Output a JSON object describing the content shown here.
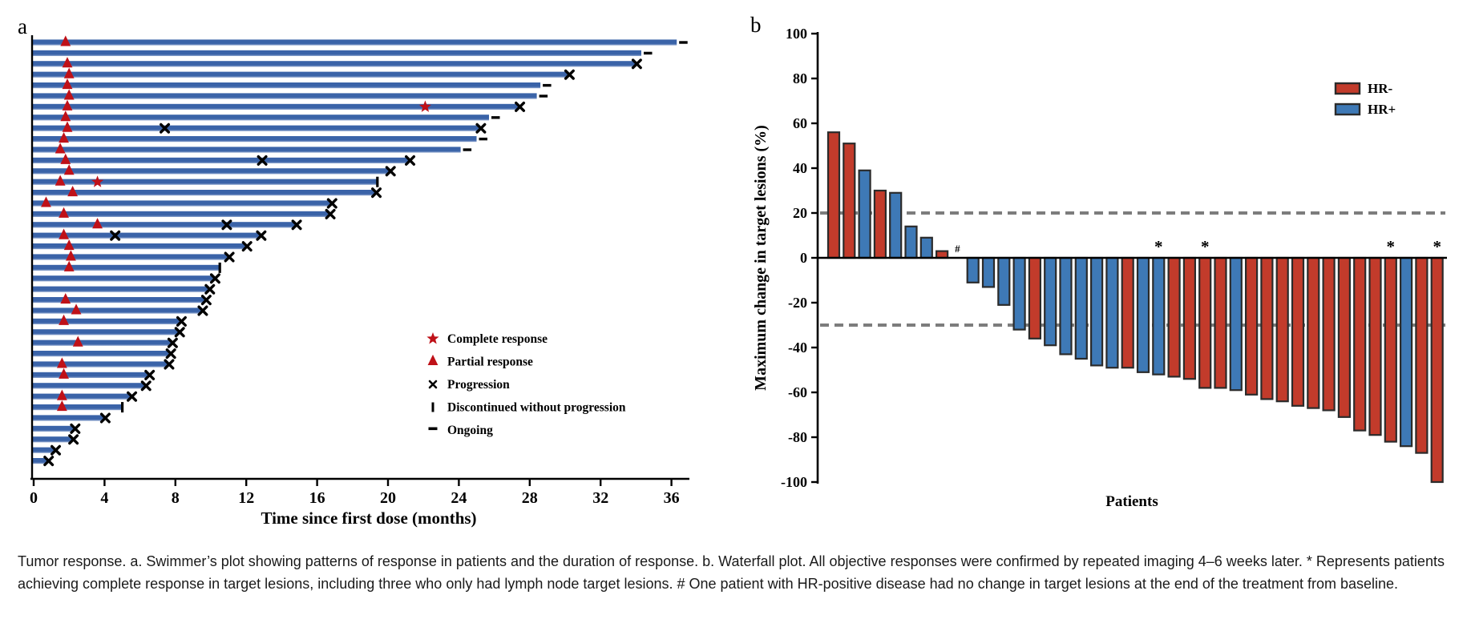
{
  "figure": {
    "panel_a_label": "a",
    "panel_b_label": "b",
    "caption": "Tumor response. a. Swimmer’s plot showing patterns of response in patients and the duration of response. b. Waterfall plot. All objective responses were confirmed by repeated imaging 4–6 weeks later. * Represents patients achieving complete response in target lesions, including three who only had lymph node target lesions. # One patient with HR-positive disease had no change in target lesions at the end of the treatment from baseline."
  },
  "colors": {
    "swimmer_bar": "#3A63A8",
    "swimmer_bar_edge": "#93A9D1",
    "hr_neg": "#C23B2B",
    "hr_pos": "#3E79B6",
    "bar_stroke": "#2B2B2B",
    "marker_red": "#BF1118",
    "dashed_gray": "#7D7D7D",
    "axis_black": "#000000"
  },
  "chart_data": [
    {
      "type": "swimmer",
      "panel": "a",
      "xlabel": "Time since first dose (months)",
      "x_ticks": [
        0,
        4,
        8,
        12,
        16,
        20,
        24,
        28,
        32,
        36
      ],
      "xlim": [
        0,
        37
      ],
      "legend": [
        {
          "marker": "star",
          "label": "Complete response"
        },
        {
          "marker": "triangle",
          "label": "Partial response"
        },
        {
          "marker": "x",
          "label": "Progression"
        },
        {
          "marker": "bar",
          "label": "Discontinued without progression"
        },
        {
          "marker": "dash",
          "label": "Ongoing"
        }
      ],
      "marker_meanings": {
        "star": "Complete response",
        "triangle": "Partial response",
        "x": "Progression",
        "bar": "Discontinued without progression",
        "dash": "Ongoing"
      },
      "patients": [
        {
          "months": 36.3,
          "pr": 1.8,
          "end": "ongoing"
        },
        {
          "months": 34.3,
          "end": "ongoing"
        },
        {
          "months": 34.0,
          "pr": 1.9,
          "end": "x"
        },
        {
          "months": 30.2,
          "pr": 2.0,
          "end": "x"
        },
        {
          "months": 28.6,
          "pr": 1.9,
          "end": "ongoing"
        },
        {
          "months": 28.4,
          "pr": 2.0,
          "end": "ongoing"
        },
        {
          "months": 27.4,
          "pr": 1.9,
          "cr": 22.1,
          "end": "x"
        },
        {
          "months": 25.7,
          "pr": 1.8,
          "end": "ongoing"
        },
        {
          "months": 25.2,
          "pr": 1.9,
          "prog": [
            7.4
          ],
          "end": "x"
        },
        {
          "months": 25.0,
          "pr": 1.7,
          "end": "ongoing"
        },
        {
          "months": 24.1,
          "pr": 1.5,
          "end": "ongoing"
        },
        {
          "months": 21.2,
          "pr": 1.8,
          "prog": [
            12.9
          ],
          "end": "x"
        },
        {
          "months": 20.1,
          "pr": 2.0,
          "end": "x"
        },
        {
          "months": 19.4,
          "pr": 1.5,
          "cr": 3.6,
          "end": "discontinued"
        },
        {
          "months": 19.3,
          "pr": 2.2,
          "end": "x"
        },
        {
          "months": 16.8,
          "pr": 0.7,
          "end": "x"
        },
        {
          "months": 16.7,
          "pr": 1.7,
          "end": "x"
        },
        {
          "months": 14.8,
          "pr": 3.6,
          "prog": [
            10.9
          ],
          "end": "x"
        },
        {
          "months": 12.8,
          "pr": 1.7,
          "prog": [
            4.6
          ],
          "end": "x"
        },
        {
          "months": 12.0,
          "pr": 2.0,
          "end": "x"
        },
        {
          "months": 11.0,
          "pr": 2.1,
          "end": "x"
        },
        {
          "months": 10.5,
          "pr": 2.0,
          "end": "discontinued"
        },
        {
          "months": 10.2,
          "end": "x"
        },
        {
          "months": 9.9,
          "end": "x"
        },
        {
          "months": 9.7,
          "pr": 1.8,
          "end": "x"
        },
        {
          "months": 9.5,
          "pr": 2.4,
          "end": "x"
        },
        {
          "months": 8.3,
          "pr": 1.7,
          "end": "x"
        },
        {
          "months": 8.2,
          "end": "x"
        },
        {
          "months": 7.8,
          "pr": 2.5,
          "end": "x"
        },
        {
          "months": 7.7,
          "end": "x"
        },
        {
          "months": 7.6,
          "pr": 1.6,
          "end": "x"
        },
        {
          "months": 6.5,
          "pr": 1.7,
          "end": "x"
        },
        {
          "months": 6.3,
          "end": "x"
        },
        {
          "months": 5.5,
          "pr": 1.6,
          "end": "x"
        },
        {
          "months": 5.0,
          "pr": 1.6,
          "end": "discontinued"
        },
        {
          "months": 4.0,
          "end": "x"
        },
        {
          "months": 2.3,
          "end": "x"
        },
        {
          "months": 2.2,
          "end": "x"
        },
        {
          "months": 1.2,
          "end": "x"
        },
        {
          "months": 0.8,
          "end": "x"
        }
      ]
    },
    {
      "type": "bar",
      "panel": "b",
      "ylabel": "Maximum change in target lesions (%)",
      "xlabel": "Patients",
      "ylim": [
        -100,
        100
      ],
      "y_ticks": [
        100,
        80,
        60,
        40,
        20,
        0,
        -20,
        -40,
        -60,
        -80,
        -100
      ],
      "reference_lines": [
        20,
        -30
      ],
      "legend": [
        {
          "label": "HR-",
          "color_key": "hr_neg"
        },
        {
          "label": "HR+",
          "color_key": "hr_pos"
        }
      ],
      "bars": [
        {
          "value": 56,
          "hr": "-"
        },
        {
          "value": 51,
          "hr": "-"
        },
        {
          "value": 39,
          "hr": "+"
        },
        {
          "value": 30,
          "hr": "-"
        },
        {
          "value": 29,
          "hr": "+"
        },
        {
          "value": 14,
          "hr": "+"
        },
        {
          "value": 9,
          "hr": "+"
        },
        {
          "value": 3,
          "hr": "-"
        },
        {
          "value": 0,
          "hr": "+",
          "mark": "#"
        },
        {
          "value": -11,
          "hr": "+"
        },
        {
          "value": -13,
          "hr": "+"
        },
        {
          "value": -21,
          "hr": "+"
        },
        {
          "value": -32,
          "hr": "+"
        },
        {
          "value": -36,
          "hr": "-"
        },
        {
          "value": -39,
          "hr": "+"
        },
        {
          "value": -43,
          "hr": "+"
        },
        {
          "value": -45,
          "hr": "+"
        },
        {
          "value": -48,
          "hr": "+"
        },
        {
          "value": -49,
          "hr": "+"
        },
        {
          "value": -49,
          "hr": "-"
        },
        {
          "value": -51,
          "hr": "+"
        },
        {
          "value": -52,
          "hr": "+",
          "mark": "*"
        },
        {
          "value": -53,
          "hr": "-"
        },
        {
          "value": -54,
          "hr": "-"
        },
        {
          "value": -58,
          "hr": "-",
          "mark": "*"
        },
        {
          "value": -58,
          "hr": "-"
        },
        {
          "value": -59,
          "hr": "+"
        },
        {
          "value": -61,
          "hr": "-"
        },
        {
          "value": -63,
          "hr": "-"
        },
        {
          "value": -64,
          "hr": "-"
        },
        {
          "value": -66,
          "hr": "-"
        },
        {
          "value": -67,
          "hr": "-"
        },
        {
          "value": -68,
          "hr": "-"
        },
        {
          "value": -71,
          "hr": "-"
        },
        {
          "value": -77,
          "hr": "-"
        },
        {
          "value": -79,
          "hr": "-"
        },
        {
          "value": -82,
          "hr": "-",
          "mark": "*"
        },
        {
          "value": -84,
          "hr": "+"
        },
        {
          "value": -87,
          "hr": "-"
        },
        {
          "value": -100,
          "hr": "-",
          "mark": "*"
        }
      ]
    }
  ]
}
